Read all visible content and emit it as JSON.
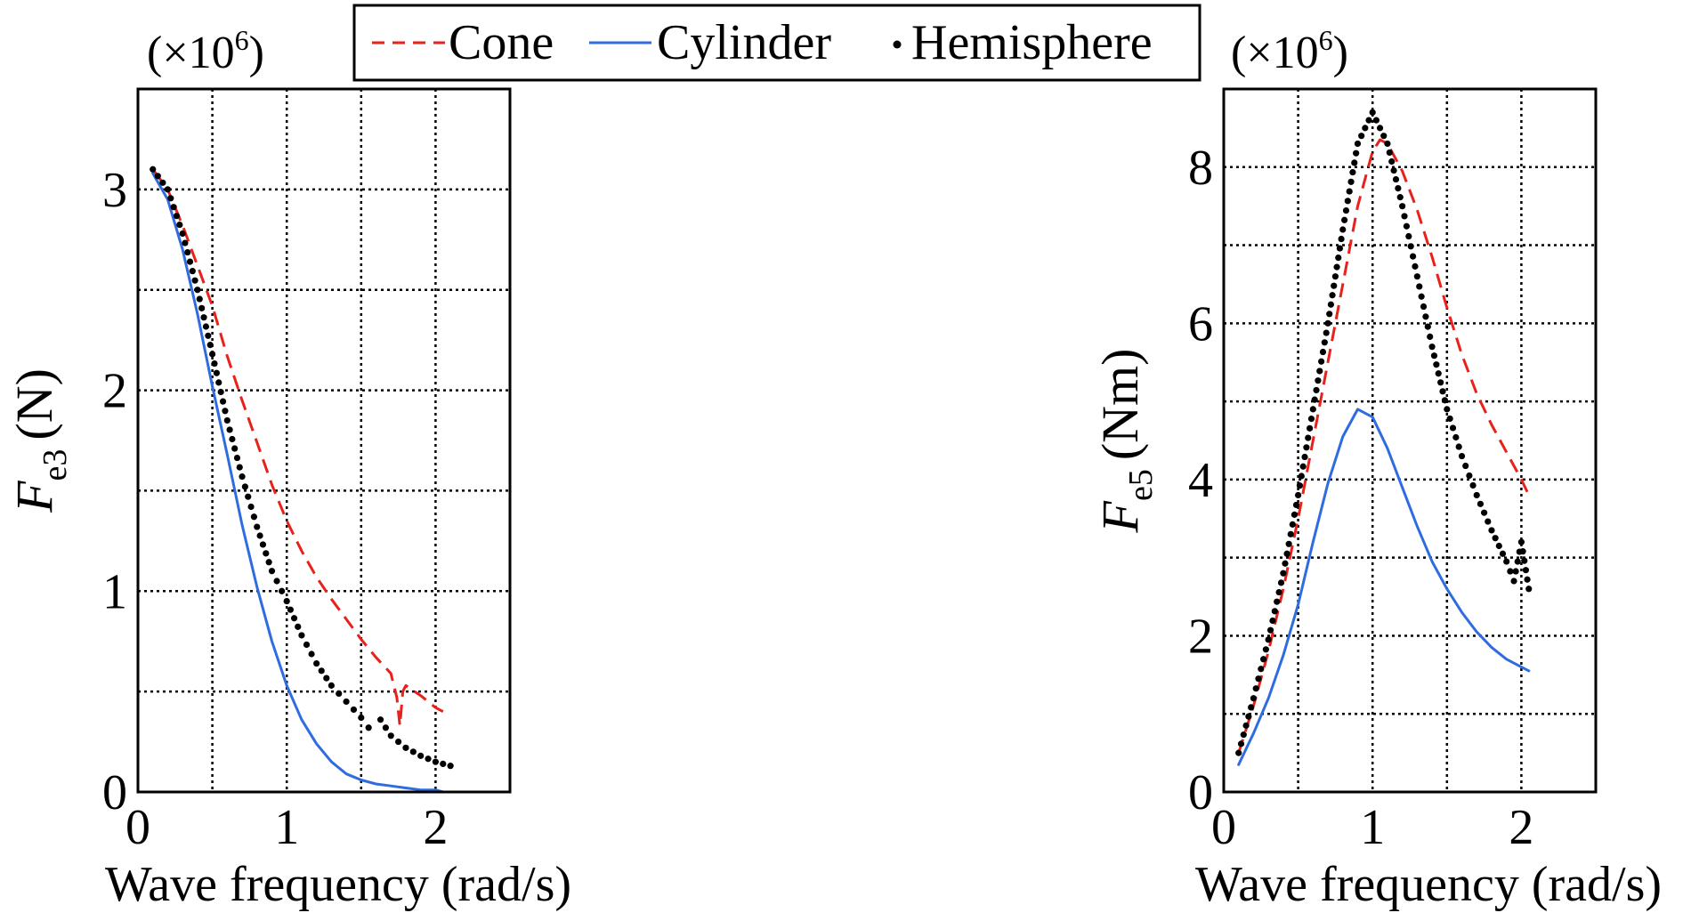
{
  "legend": {
    "entries": [
      {
        "label": "Cone",
        "color": "#e8211b",
        "style": "dashed"
      },
      {
        "label": "Cylinder",
        "color": "#2f6ce0",
        "style": "solid"
      },
      {
        "label": "Hemisphere",
        "color": "#000000",
        "style": "dotted"
      }
    ]
  },
  "colors": {
    "cone": "#e8211b",
    "cylinder": "#2f6ce0",
    "hemisphere": "#000000",
    "grid": "#000000"
  },
  "chart_data": [
    {
      "type": "line",
      "ylabel": "Fe3 (N)",
      "ylabel_main": "F",
      "ylabel_sub": "e3",
      "ylabel_unit": "(N)",
      "xlabel": "Wave frequency (rad/s)",
      "multiplier": "(×10",
      "multiplier_exp": "6",
      "multiplier_close": ")",
      "xlim": [
        0,
        2.5
      ],
      "ylim": [
        0,
        3.5
      ],
      "xticks": [
        0,
        1,
        2
      ],
      "xtick_labels": [
        "0",
        "1",
        "2"
      ],
      "yticks": [
        0,
        1,
        2,
        3
      ],
      "ytick_labels": [
        "0",
        "1",
        "2",
        "3"
      ],
      "xgrid": [
        0.5,
        1.0,
        1.5,
        2.0
      ],
      "ygrid": [
        0.5,
        1.0,
        1.5,
        2.0,
        2.5,
        3.0
      ],
      "grid": true,
      "series": [
        {
          "name": "Cone",
          "key": "cone",
          "style": "dashed",
          "x": [
            0.1,
            0.2,
            0.3,
            0.4,
            0.5,
            0.6,
            0.7,
            0.8,
            0.9,
            1.0,
            1.1,
            1.2,
            1.3,
            1.4,
            1.5,
            1.6,
            1.7,
            1.74,
            1.76,
            1.78,
            1.8,
            1.9,
            2.0,
            2.05
          ],
          "y": [
            3.1,
            3.0,
            2.82,
            2.62,
            2.42,
            2.17,
            1.95,
            1.74,
            1.53,
            1.35,
            1.2,
            1.07,
            0.96,
            0.86,
            0.76,
            0.67,
            0.59,
            0.47,
            0.33,
            0.5,
            0.53,
            0.48,
            0.42,
            0.4
          ]
        },
        {
          "name": "Cylinder",
          "key": "cylinder",
          "style": "solid",
          "x": [
            0.1,
            0.2,
            0.3,
            0.4,
            0.5,
            0.6,
            0.7,
            0.8,
            0.9,
            1.0,
            1.1,
            1.2,
            1.3,
            1.4,
            1.5,
            1.6,
            1.7,
            1.8,
            1.9,
            2.0,
            2.05
          ],
          "y": [
            3.08,
            2.95,
            2.7,
            2.38,
            2.02,
            1.68,
            1.33,
            1.02,
            0.75,
            0.53,
            0.36,
            0.24,
            0.15,
            0.09,
            0.06,
            0.04,
            0.03,
            0.02,
            0.01,
            0.01,
            0.0
          ]
        },
        {
          "name": "Hemisphere",
          "key": "hemisphere",
          "style": "dotted",
          "x": [
            0.1,
            0.2,
            0.3,
            0.4,
            0.5,
            0.6,
            0.7,
            0.8,
            0.9,
            1.0,
            1.1,
            1.2,
            1.3,
            1.4,
            1.5,
            1.55,
            1.63,
            1.7,
            1.8,
            1.9,
            2.0,
            2.1
          ],
          "y": [
            3.1,
            3.0,
            2.78,
            2.5,
            2.18,
            1.85,
            1.57,
            1.32,
            1.1,
            0.95,
            0.78,
            0.64,
            0.53,
            0.45,
            0.37,
            0.32,
            0.36,
            0.28,
            0.22,
            0.18,
            0.15,
            0.13
          ]
        }
      ]
    },
    {
      "type": "line",
      "ylabel": "Fe5 (Nm)",
      "ylabel_main": "F",
      "ylabel_sub": "e5",
      "ylabel_unit": "(Nm)",
      "xlabel": "Wave frequency (rad/s)",
      "multiplier": "(×10",
      "multiplier_exp": "6",
      "multiplier_close": ")",
      "xlim": [
        0,
        2.5
      ],
      "ylim": [
        0,
        9.0
      ],
      "xticks": [
        0,
        1,
        2
      ],
      "xtick_labels": [
        "0",
        "1",
        "2"
      ],
      "yticks": [
        0,
        2,
        4,
        6,
        8
      ],
      "ytick_labels": [
        "0",
        "2",
        "4",
        "6",
        "8"
      ],
      "xgrid": [
        0.5,
        1.0,
        1.5,
        2.0
      ],
      "ygrid": [
        1,
        2,
        3,
        4,
        5,
        6,
        7,
        8
      ],
      "grid": true,
      "series": [
        {
          "name": "Cone",
          "key": "cone",
          "style": "dashed",
          "x": [
            0.1,
            0.2,
            0.3,
            0.4,
            0.5,
            0.6,
            0.7,
            0.8,
            0.9,
            1.0,
            1.05,
            1.1,
            1.2,
            1.3,
            1.4,
            1.5,
            1.6,
            1.7,
            1.8,
            1.9,
            2.0,
            2.05
          ],
          "y": [
            0.5,
            1.1,
            1.8,
            2.6,
            3.5,
            4.5,
            5.5,
            6.5,
            7.5,
            8.2,
            8.35,
            8.3,
            7.95,
            7.45,
            6.85,
            6.2,
            5.6,
            5.1,
            4.7,
            4.35,
            4.0,
            3.8
          ]
        },
        {
          "name": "Cylinder",
          "key": "cylinder",
          "style": "solid",
          "x": [
            0.1,
            0.2,
            0.3,
            0.4,
            0.5,
            0.6,
            0.7,
            0.8,
            0.9,
            1.0,
            1.1,
            1.2,
            1.3,
            1.4,
            1.5,
            1.6,
            1.7,
            1.8,
            1.9,
            2.0,
            2.05
          ],
          "y": [
            0.35,
            0.75,
            1.2,
            1.75,
            2.4,
            3.2,
            3.95,
            4.55,
            4.9,
            4.8,
            4.4,
            3.9,
            3.4,
            2.95,
            2.6,
            2.3,
            2.05,
            1.85,
            1.7,
            1.6,
            1.55
          ]
        },
        {
          "name": "Hemisphere",
          "key": "hemisphere",
          "style": "dotted",
          "x": [
            0.1,
            0.2,
            0.3,
            0.4,
            0.5,
            0.6,
            0.7,
            0.8,
            0.9,
            1.0,
            1.1,
            1.2,
            1.3,
            1.4,
            1.5,
            1.6,
            1.7,
            1.8,
            1.9,
            1.95,
            2.0,
            2.05
          ],
          "y": [
            0.5,
            1.2,
            1.95,
            2.8,
            3.8,
            4.9,
            6.0,
            7.2,
            8.3,
            8.7,
            8.3,
            7.5,
            6.6,
            5.7,
            4.9,
            4.3,
            3.8,
            3.35,
            2.95,
            2.7,
            3.2,
            2.6
          ]
        }
      ]
    }
  ]
}
